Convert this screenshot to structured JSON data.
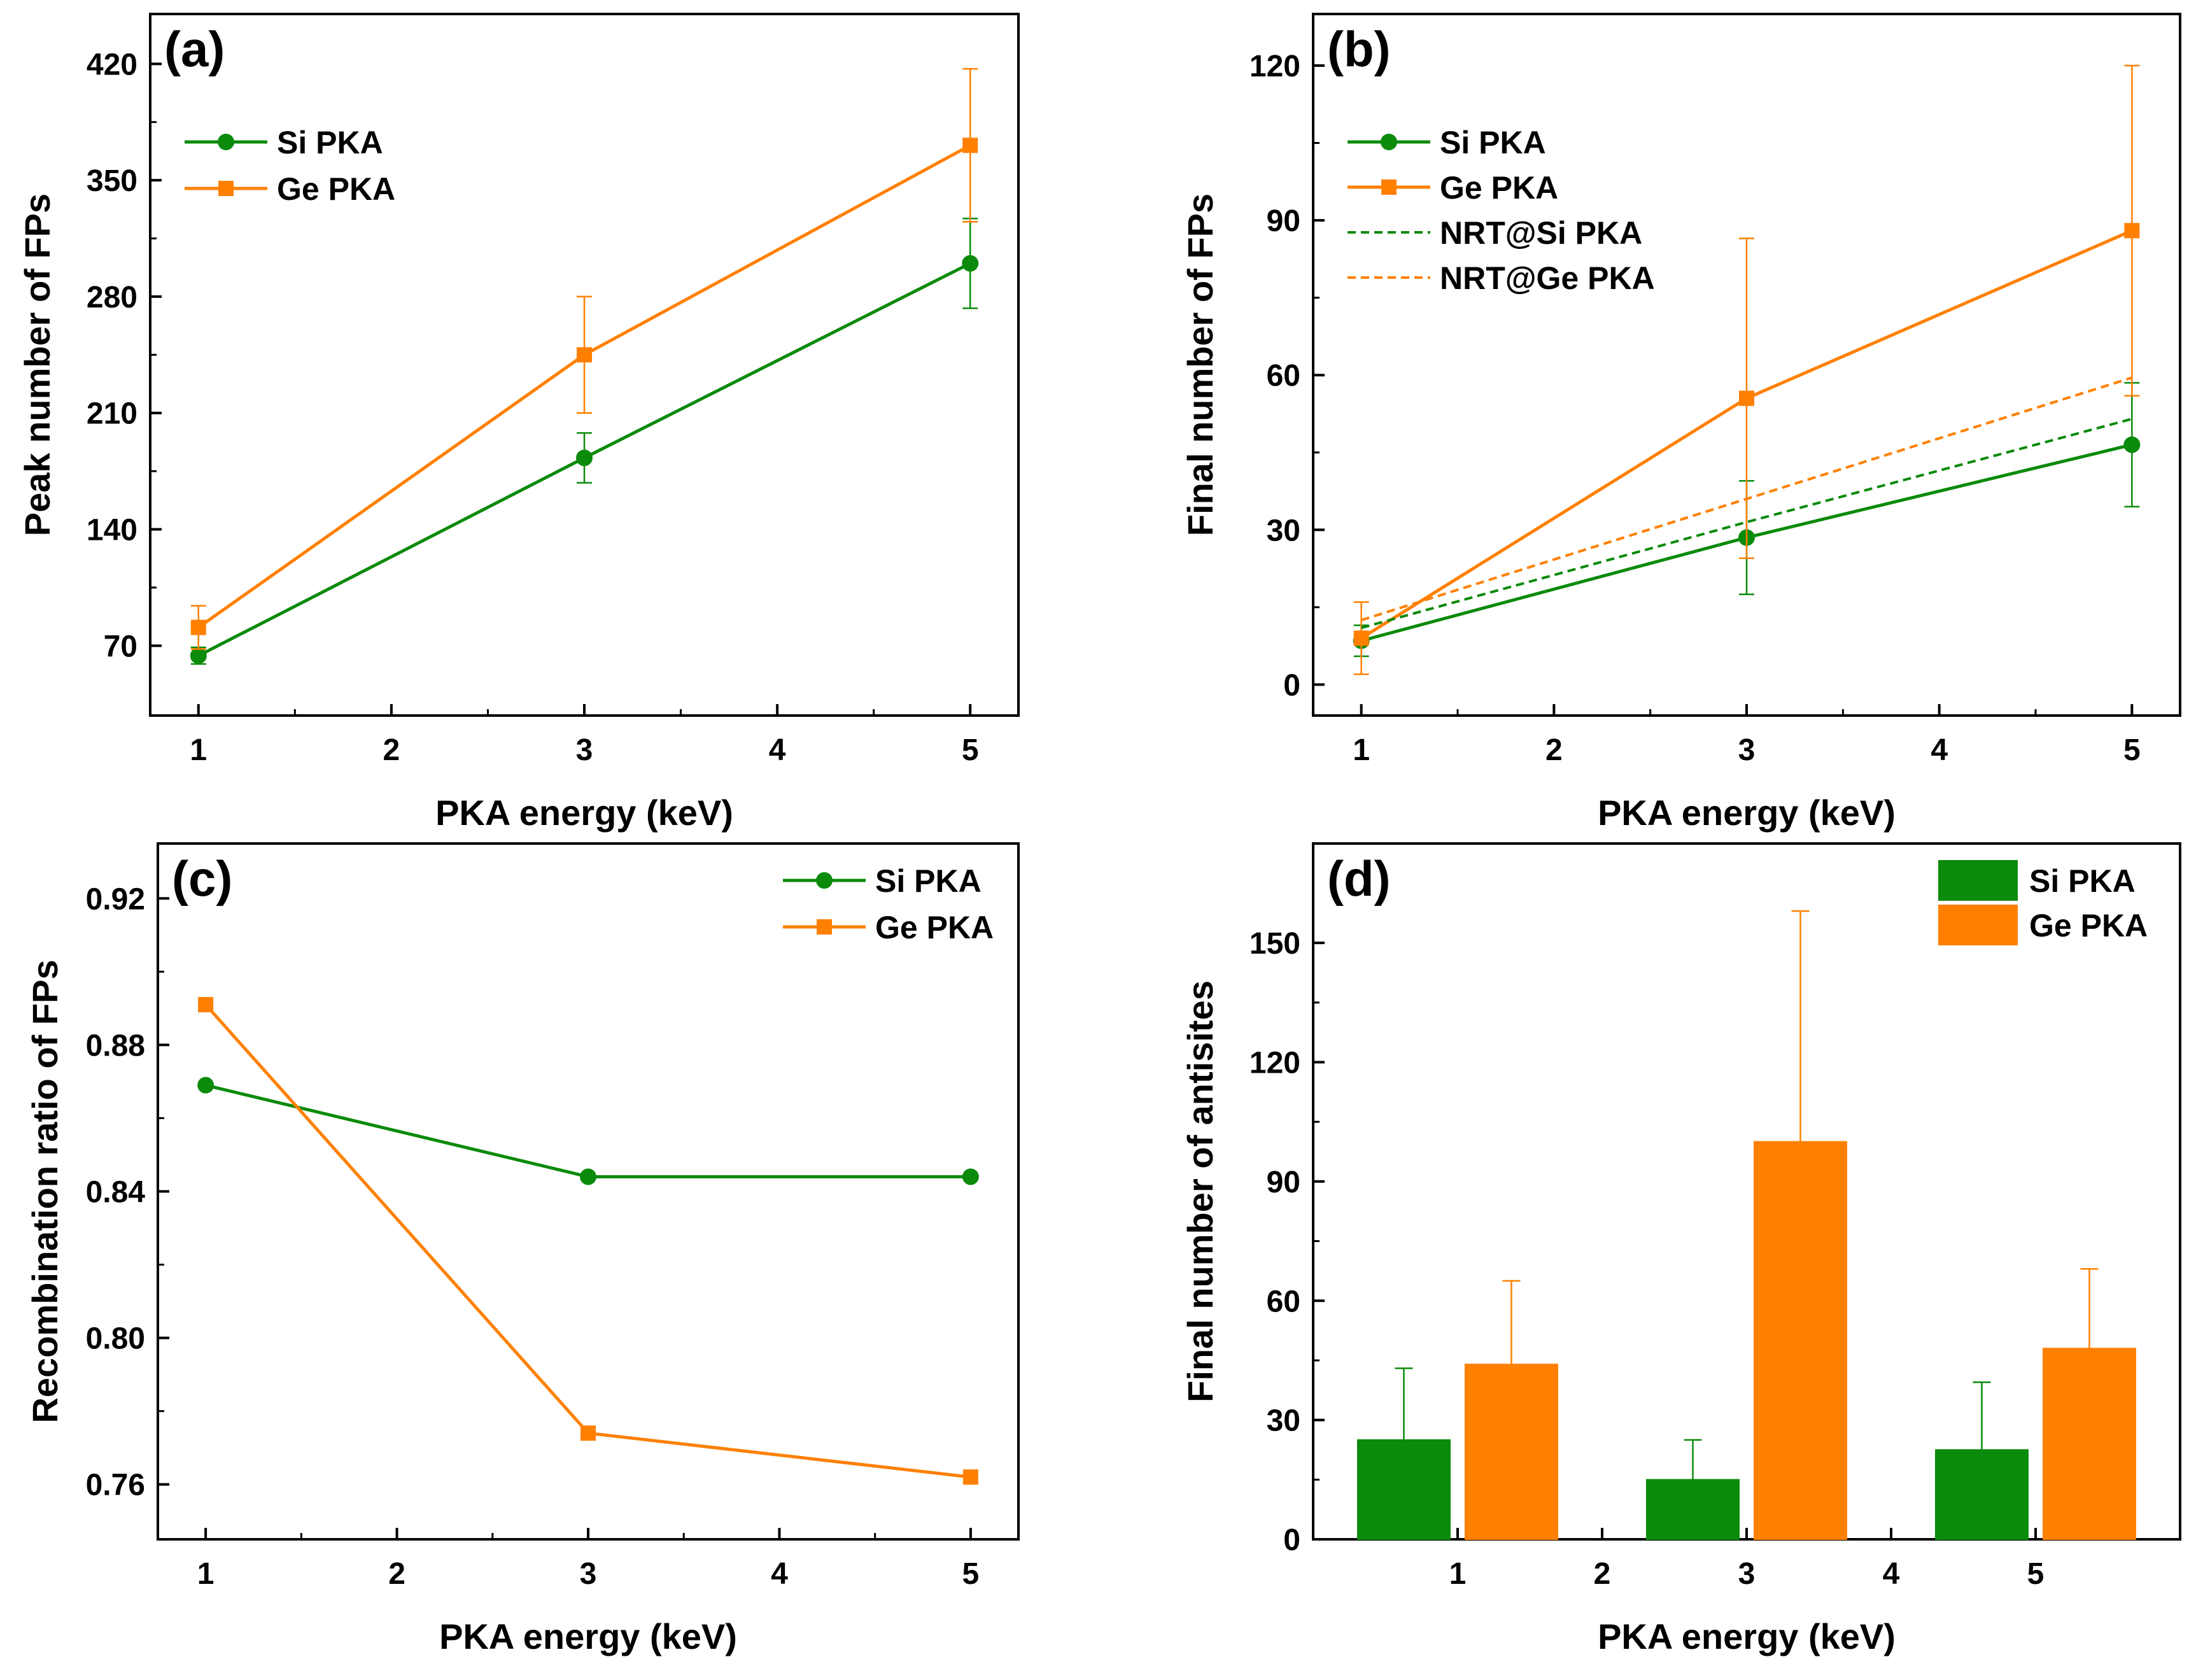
{
  "colors": {
    "si": "#0b8a0b",
    "ge": "#ff8000"
  },
  "chart_data": [
    {
      "id": "a",
      "type": "line",
      "panel_label": "(a)",
      "xlabel": "PKA energy (keV)",
      "ylabel": "Peak number of FPs",
      "xlim": [
        0.75,
        5.25
      ],
      "ylim": [
        28,
        450
      ],
      "xticks": [
        1,
        2,
        3,
        4,
        5
      ],
      "yticks": [
        70,
        140,
        210,
        280,
        350,
        420
      ],
      "legend_position": "top-left",
      "series": [
        {
          "name": "Si PKA",
          "color_key": "si",
          "marker": "circle",
          "x": [
            1,
            3,
            5
          ],
          "y": [
            64,
            183,
            300
          ],
          "err": [
            5,
            15,
            27
          ]
        },
        {
          "name": "Ge PKA",
          "color_key": "ge",
          "marker": "square",
          "x": [
            1,
            3,
            5
          ],
          "y": [
            81,
            245,
            371
          ],
          "err": [
            13,
            35,
            46
          ]
        }
      ]
    },
    {
      "id": "b",
      "type": "line",
      "panel_label": "(b)",
      "xlabel": "PKA energy (keV)",
      "ylabel": "Final number of FPs",
      "xlim": [
        0.75,
        5.25
      ],
      "ylim": [
        -6,
        130
      ],
      "xticks": [
        1,
        2,
        3,
        4,
        5
      ],
      "yticks": [
        0,
        30,
        60,
        90,
        120
      ],
      "legend_position": "top-left",
      "series": [
        {
          "name": "Si PKA",
          "color_key": "si",
          "marker": "circle",
          "x": [
            1,
            3,
            5
          ],
          "y": [
            8.5,
            28.5,
            46.5
          ],
          "err": [
            3,
            11,
            12
          ]
        },
        {
          "name": "Ge PKA",
          "color_key": "ge",
          "marker": "square",
          "x": [
            1,
            3,
            5
          ],
          "y": [
            9,
            55.5,
            88
          ],
          "err": [
            7,
            31,
            32
          ]
        },
        {
          "name": "NRT@Si PKA",
          "color_key": "si",
          "dashed": true,
          "x": [
            1,
            3,
            5
          ],
          "y": [
            11,
            31.5,
            51.5
          ]
        },
        {
          "name": "NRT@Ge PKA",
          "color_key": "ge",
          "dashed": true,
          "x": [
            1,
            3,
            5
          ],
          "y": [
            12.5,
            36,
            59.5
          ]
        }
      ]
    },
    {
      "id": "c",
      "type": "line",
      "panel_label": "(c)",
      "xlabel": "PKA energy (keV)",
      "ylabel": "Recombination ratio of FPs",
      "xlim": [
        0.75,
        5.25
      ],
      "ylim": [
        0.745,
        0.935
      ],
      "xticks": [
        1,
        2,
        3,
        4,
        5
      ],
      "yticks": [
        "0.76",
        "0.80",
        "0.84",
        "0.88",
        "0.92"
      ],
      "legend_position": "top-right",
      "series": [
        {
          "name": "Si PKA",
          "color_key": "si",
          "marker": "circle",
          "x": [
            1,
            3,
            5
          ],
          "y": [
            0.869,
            0.844,
            0.844
          ]
        },
        {
          "name": "Ge PKA",
          "color_key": "ge",
          "marker": "square",
          "x": [
            1,
            3,
            5
          ],
          "y": [
            0.891,
            0.774,
            0.762
          ]
        }
      ]
    },
    {
      "id": "d",
      "type": "bar",
      "panel_label": "(d)",
      "xlabel": "PKA energy (keV)",
      "ylabel": "Final number of antisites",
      "xlim": [
        0,
        6
      ],
      "ylim": [
        0,
        175
      ],
      "xticks": [
        1,
        2,
        3,
        4,
        5
      ],
      "yticks": [
        0,
        30,
        60,
        90,
        120,
        150
      ],
      "legend_position": "top-right",
      "series": [
        {
          "name": "Si PKA",
          "color_key": "si",
          "x": [
            1,
            3,
            5
          ],
          "y": [
            25,
            15,
            22.5
          ],
          "err": [
            18,
            10,
            17
          ]
        },
        {
          "name": "Ge PKA",
          "color_key": "ge",
          "x": [
            1,
            3,
            5
          ],
          "y": [
            44,
            100,
            48
          ],
          "err": [
            21,
            58,
            20
          ]
        }
      ]
    }
  ]
}
